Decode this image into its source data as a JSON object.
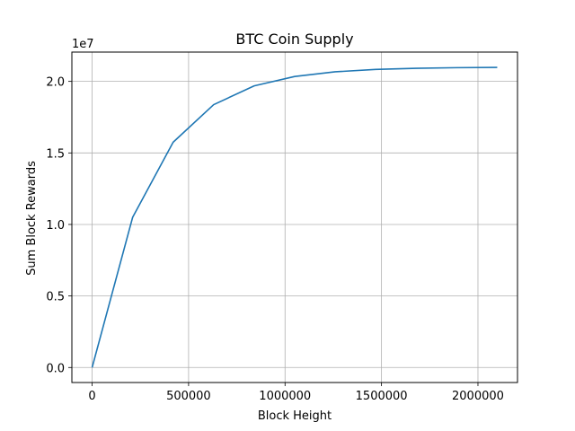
{
  "chart_data": {
    "type": "line",
    "title": "BTC Coin Supply",
    "xlabel": "Block Height",
    "ylabel": "Sum Block Rewards",
    "y_offset_label": "1e7",
    "xlim": [
      -105000,
      2205000
    ],
    "ylim": [
      -1050000,
      22050000
    ],
    "grid": true,
    "x_ticks": [
      0,
      500000,
      1000000,
      1500000,
      2000000
    ],
    "x_tick_labels": [
      "0",
      "500000",
      "1000000",
      "1500000",
      "2000000"
    ],
    "y_ticks": [
      0,
      5000000,
      10000000,
      15000000,
      20000000
    ],
    "y_tick_labels": [
      "0.0",
      "0.5",
      "1.0",
      "1.5",
      "2.0"
    ],
    "series": [
      {
        "color": "#1f77b4",
        "x": [
          0,
          210000,
          420000,
          630000,
          840000,
          1050000,
          1260000,
          1470000,
          1680000,
          1890000,
          2100000
        ],
        "y": [
          0,
          10500000,
          15750000,
          18375000,
          19687500,
          20343750,
          20671875,
          20835937.5,
          20917968.75,
          20958984.375,
          20979492.19
        ]
      }
    ]
  }
}
